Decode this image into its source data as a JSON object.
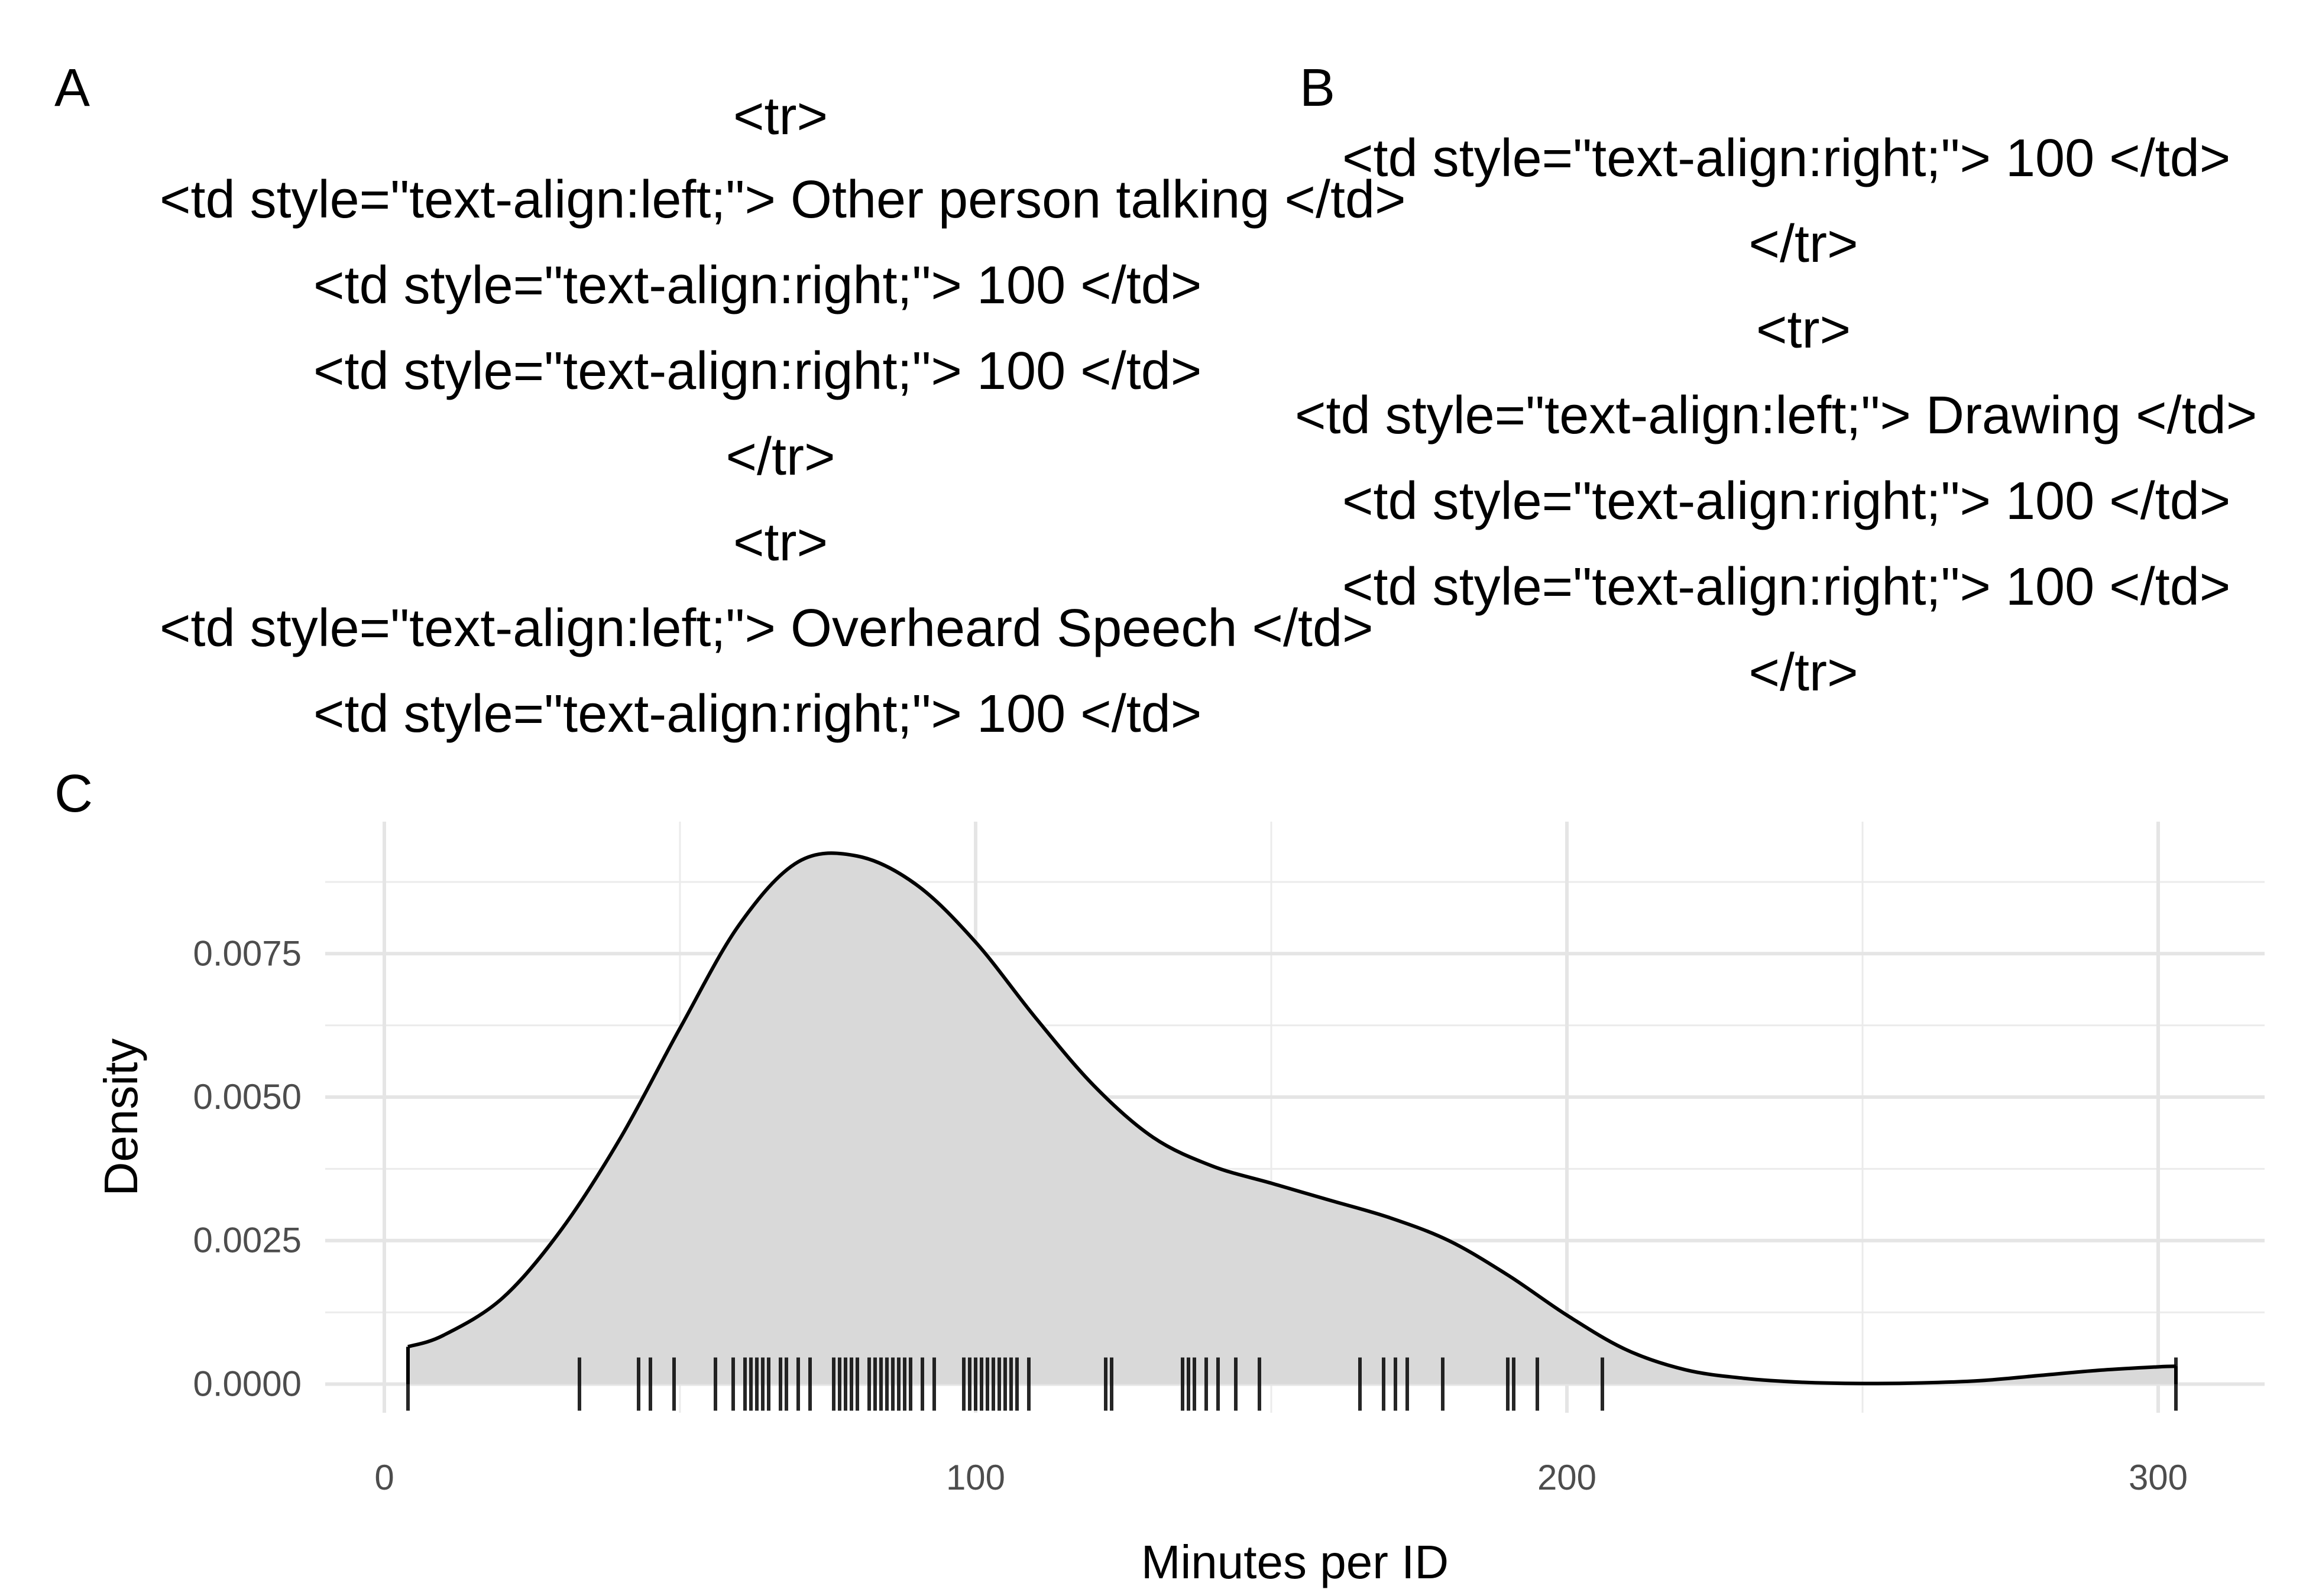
{
  "panels": {
    "a": {
      "tag": "A",
      "lines": [
        "<tr>",
        "<td style=\"text-align:left;\"> Other person talking </td>",
        "<td style=\"text-align:right;\"> 100 </td>",
        "<td style=\"text-align:right;\"> 100 </td>",
        "</tr>",
        "<tr>",
        "<td style=\"text-align:left;\"> Overheard Speech </td>",
        "<td style=\"text-align:right;\"> 100 </td>"
      ]
    },
    "b": {
      "tag": "B",
      "lines": [
        "<td style=\"text-align:right;\"> 100 </td>",
        "</tr>",
        "<tr>",
        "<td style=\"text-align:left;\"> Drawing </td>",
        "<td style=\"text-align:right;\"> 100 </td>",
        "<td style=\"text-align:right;\"> 100 </td>",
        "</tr>"
      ]
    },
    "c": {
      "tag": "C"
    }
  },
  "chart_data": {
    "type": "area",
    "xlabel": "Minutes per ID",
    "ylabel": "Density",
    "xlim": [
      -10,
      318
    ],
    "ylim": [
      -0.0005,
      0.0098
    ],
    "x_ticks": [
      0,
      100,
      200,
      300
    ],
    "x_tick_labels": [
      "0",
      "100",
      "200",
      "300"
    ],
    "y_ticks": [
      0,
      0.0025,
      0.005,
      0.0075
    ],
    "y_tick_labels": [
      "0.0000",
      "0.0025",
      "0.0050",
      "0.0075"
    ],
    "grid": true,
    "fill_color": "#d9d9d9",
    "line_color": "#000000",
    "density_curve": {
      "x": [
        4,
        10,
        20,
        30,
        40,
        50,
        60,
        70,
        80,
        90,
        100,
        110,
        120,
        130,
        140,
        150,
        160,
        170,
        180,
        190,
        200,
        210,
        220,
        230,
        240,
        250,
        260,
        270,
        280,
        290,
        300,
        303
      ],
      "y": [
        0.00065,
        0.00085,
        0.0015,
        0.0027,
        0.0043,
        0.0062,
        0.008,
        0.0091,
        0.0092,
        0.0087,
        0.0077,
        0.0064,
        0.0052,
        0.0043,
        0.0038,
        0.0035,
        0.0032,
        0.0029,
        0.0025,
        0.0019,
        0.0012,
        0.0006,
        0.00025,
        0.0001,
        3e-05,
        1e-05,
        2e-05,
        6e-05,
        0.00015,
        0.00024,
        0.0003,
        0.00031
      ]
    },
    "rug": [
      4,
      33,
      43,
      45,
      49,
      56,
      59,
      61,
      62,
      63,
      64,
      65,
      67,
      68,
      70,
      72,
      76,
      77,
      78,
      79,
      80,
      82,
      83,
      84,
      85,
      86,
      87,
      88,
      89,
      91,
      93,
      98,
      99,
      100,
      101,
      102,
      103,
      104,
      105,
      106,
      107,
      109,
      122,
      123,
      135,
      136,
      137,
      139,
      141,
      144,
      148,
      165,
      169,
      171,
      173,
      179,
      190,
      191,
      195,
      206,
      303
    ]
  }
}
